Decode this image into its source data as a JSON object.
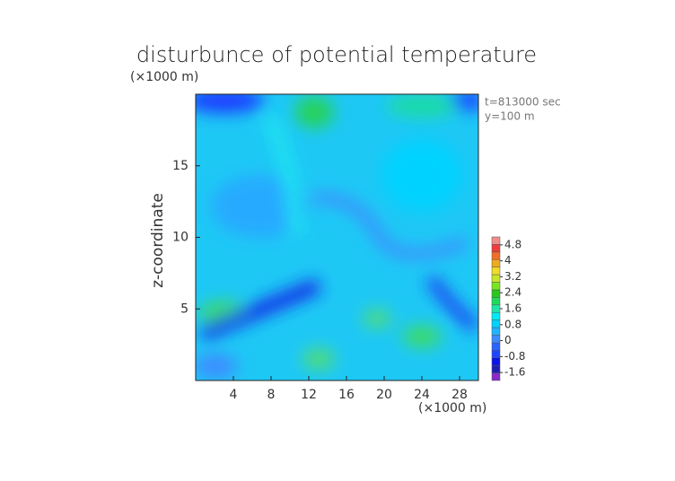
{
  "chart_data": {
    "type": "contour",
    "title": "disturbunce of potential temperature",
    "y_unit_label": "(×1000 m)",
    "x_unit_label": "(×1000 m)",
    "ylabel": "z-coordinate",
    "annotations": [
      "t=813000 sec",
      "y=100 m"
    ],
    "xlim": [
      0,
      30
    ],
    "xticks": [
      4,
      8,
      12,
      16,
      20,
      24,
      28
    ],
    "ylim": [
      0,
      20
    ],
    "yticks": [
      5,
      10,
      15
    ],
    "colorbar": {
      "clim": [
        -2.0,
        5.2
      ],
      "ticks": [
        -1.6,
        -0.8,
        0,
        0.8,
        1.6,
        2.4,
        3.2,
        4,
        4.8
      ],
      "colors": [
        "#8a2bc8",
        "#1e1eb4",
        "#0a14e6",
        "#1e46ff",
        "#2864ff",
        "#3c8cff",
        "#1eb4ff",
        "#00d2ff",
        "#00ebf5",
        "#1ee6aa",
        "#1edc5a",
        "#28c81e",
        "#78e61e",
        "#c8e628",
        "#f0dc28",
        "#f0aa1e",
        "#f06e28",
        "#f03c3c",
        "#f08c8c"
      ]
    }
  }
}
